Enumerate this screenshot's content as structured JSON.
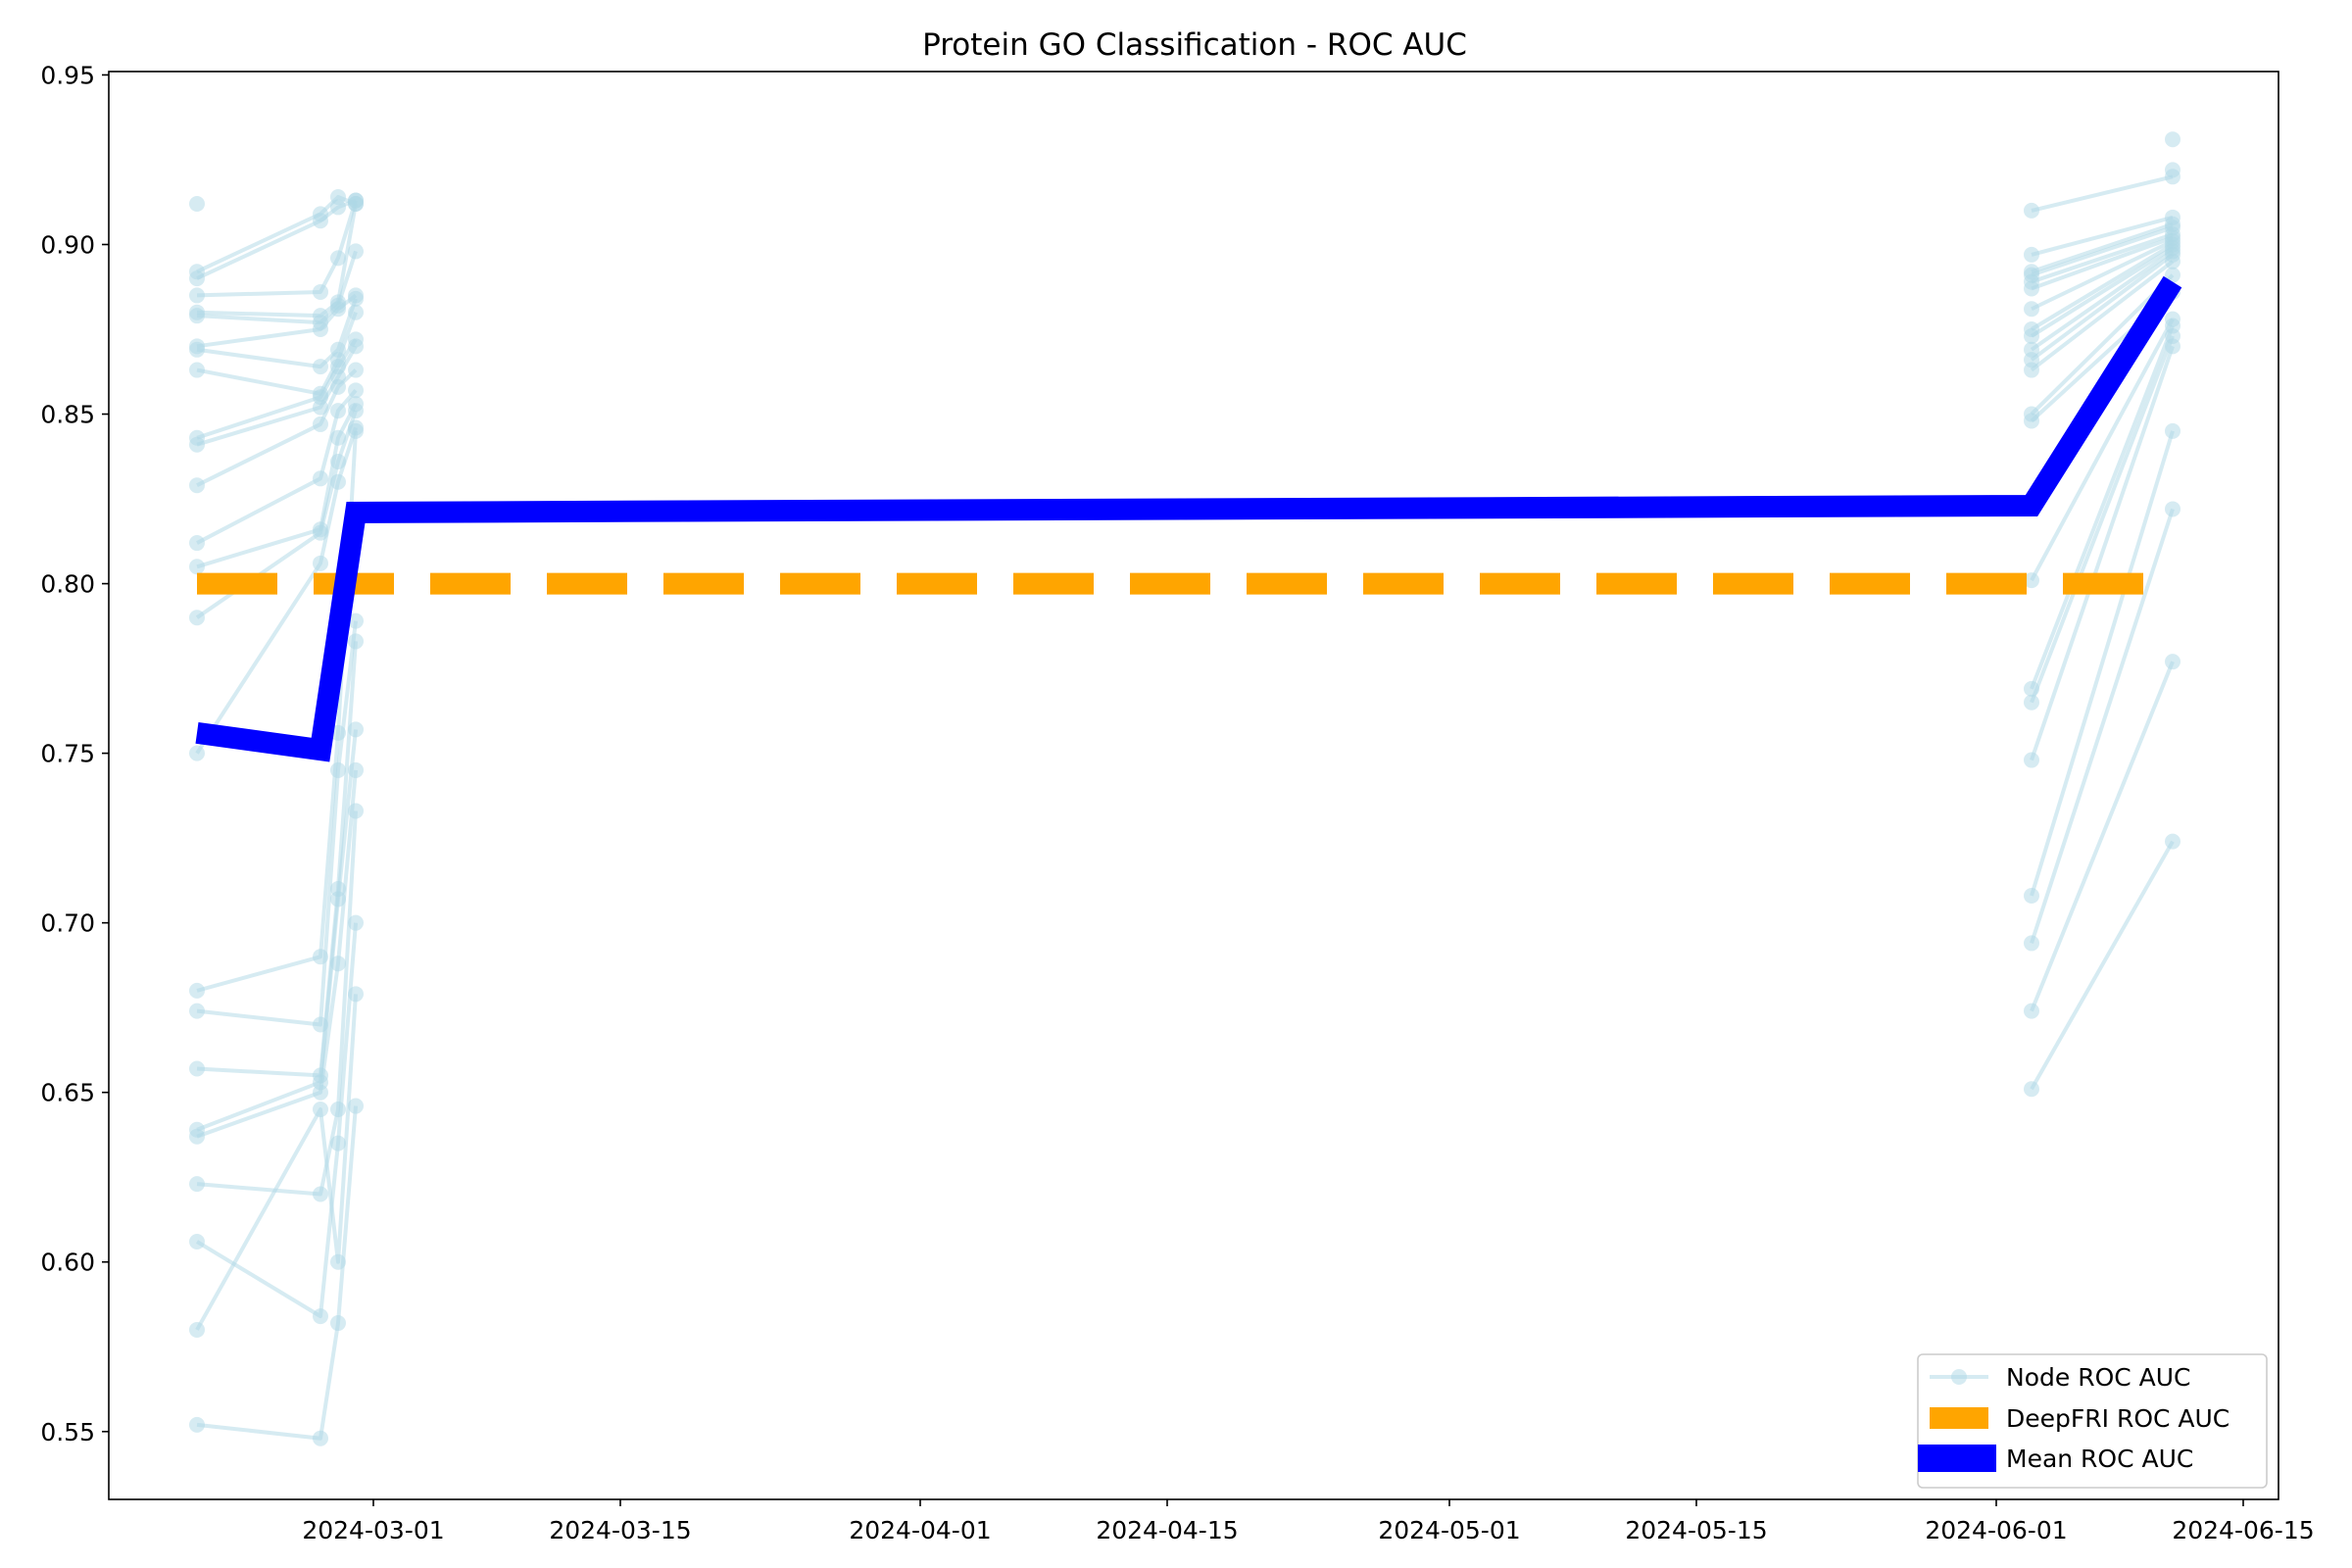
{
  "chart_data": {
    "type": "line",
    "title": "Protein GO Classification - ROC AUC",
    "xlabel": "",
    "ylabel": "",
    "x_axis": {
      "kind": "date",
      "range": [
        "2024-02-15",
        "2024-06-17"
      ]
    },
    "ylim": [
      0.53,
      0.951
    ],
    "x_ticks": [
      "2024-03-01",
      "2024-03-15",
      "2024-04-01",
      "2024-04-15",
      "2024-05-01",
      "2024-05-15",
      "2024-06-01",
      "2024-06-15"
    ],
    "y_ticks": [
      0.55,
      0.6,
      0.65,
      0.7,
      0.75,
      0.8,
      0.85,
      0.9,
      0.95
    ],
    "grid": false,
    "legend": {
      "position": "lower-right",
      "entries": [
        "Node ROC AUC",
        "DeepFRI ROC AUC",
        "Mean ROC AUC"
      ]
    },
    "colors": {
      "node": "#add8e6",
      "deepfri": "#ffa500",
      "mean": "#0000ff"
    },
    "node_series": [
      {
        "x": [
          "2024-02-20",
          "2024-02-27",
          "2024-02-28",
          "2024-02-29"
        ],
        "values": [
          0.552,
          0.548,
          0.582,
          0.646
        ]
      },
      {
        "x": [
          "2024-02-20",
          "2024-02-27",
          "2024-02-28",
          "2024-02-29"
        ],
        "values": [
          0.58,
          0.645,
          0.6,
          0.679
        ]
      },
      {
        "x": [
          "2024-02-20",
          "2024-02-27",
          "2024-02-28",
          "2024-02-29"
        ],
        "values": [
          0.606,
          0.584,
          0.635,
          0.7
        ]
      },
      {
        "x": [
          "2024-02-20",
          "2024-02-27",
          "2024-02-28",
          "2024-02-29"
        ],
        "values": [
          0.623,
          0.62,
          0.645,
          0.733
        ]
      },
      {
        "x": [
          "2024-02-20",
          "2024-02-27",
          "2024-02-28",
          "2024-02-29"
        ],
        "values": [
          0.637,
          0.65,
          0.688,
          0.745
        ]
      },
      {
        "x": [
          "2024-02-20",
          "2024-02-27",
          "2024-02-28",
          "2024-02-29"
        ],
        "values": [
          0.639,
          0.653,
          0.707,
          0.757
        ]
      },
      {
        "x": [
          "2024-02-20",
          "2024-02-27",
          "2024-02-28",
          "2024-02-29"
        ],
        "values": [
          0.657,
          0.655,
          0.71,
          0.783
        ]
      },
      {
        "x": [
          "2024-02-20",
          "2024-02-27",
          "2024-02-28",
          "2024-02-29"
        ],
        "values": [
          0.674,
          0.67,
          0.745,
          0.789
        ]
      },
      {
        "x": [
          "2024-02-20",
          "2024-02-27",
          "2024-02-28",
          "2024-02-29"
        ],
        "values": [
          0.68,
          0.69,
          0.756,
          0.845
        ]
      },
      {
        "x": [
          "2024-02-20",
          "2024-02-27",
          "2024-02-28",
          "2024-02-29"
        ],
        "values": [
          0.75,
          0.806,
          0.83,
          0.846
        ]
      },
      {
        "x": [
          "2024-02-20",
          "2024-02-27",
          "2024-02-28",
          "2024-02-29"
        ],
        "values": [
          0.79,
          0.815,
          0.836,
          0.851
        ]
      },
      {
        "x": [
          "2024-02-20",
          "2024-02-27",
          "2024-02-28",
          "2024-02-29"
        ],
        "values": [
          0.805,
          0.816,
          0.843,
          0.853
        ]
      },
      {
        "x": [
          "2024-02-20",
          "2024-02-27",
          "2024-02-28",
          "2024-02-29"
        ],
        "values": [
          0.812,
          0.831,
          0.851,
          0.857
        ]
      },
      {
        "x": [
          "2024-02-20",
          "2024-02-27",
          "2024-02-28",
          "2024-02-29"
        ],
        "values": [
          0.829,
          0.847,
          0.858,
          0.863
        ]
      },
      {
        "x": [
          "2024-02-20",
          "2024-02-27",
          "2024-02-28",
          "2024-02-29"
        ],
        "values": [
          0.841,
          0.852,
          0.861,
          0.87
        ]
      },
      {
        "x": [
          "2024-02-20",
          "2024-02-27",
          "2024-02-28",
          "2024-02-29"
        ],
        "values": [
          0.843,
          0.855,
          0.864,
          0.872
        ]
      },
      {
        "x": [
          "2024-02-20",
          "2024-02-27",
          "2024-02-28",
          "2024-02-29"
        ],
        "values": [
          0.863,
          0.856,
          0.866,
          0.88
        ]
      },
      {
        "x": [
          "2024-02-20",
          "2024-02-27",
          "2024-02-28",
          "2024-02-29"
        ],
        "values": [
          0.869,
          0.864,
          0.869,
          0.884
        ]
      },
      {
        "x": [
          "2024-02-20",
          "2024-02-27",
          "2024-02-28",
          "2024-02-29"
        ],
        "values": [
          0.87,
          0.875,
          0.881,
          0.885
        ]
      },
      {
        "x": [
          "2024-02-20",
          "2024-02-27",
          "2024-02-28",
          "2024-02-29"
        ],
        "values": [
          0.879,
          0.877,
          0.882,
          0.898
        ]
      },
      {
        "x": [
          "2024-02-20",
          "2024-02-27",
          "2024-02-28",
          "2024-02-29"
        ],
        "values": [
          0.88,
          0.879,
          0.883,
          0.912
        ]
      },
      {
        "x": [
          "2024-02-20",
          "2024-02-27",
          "2024-02-28",
          "2024-02-29"
        ],
        "values": [
          0.885,
          0.886,
          0.896,
          0.913
        ]
      },
      {
        "x": [
          "2024-02-20",
          "2024-02-27",
          "2024-02-28",
          "2024-02-29"
        ],
        "values": [
          0.89,
          0.907,
          0.911,
          0.913
        ]
      },
      {
        "x": [
          "2024-02-20",
          "2024-02-27",
          "2024-02-28",
          "2024-02-29"
        ],
        "values": [
          0.892,
          0.909,
          0.914,
          0.912
        ]
      },
      {
        "x": [
          "2024-02-20"
        ],
        "values": [
          0.912
        ]
      },
      {
        "x": [
          "2024-06-03",
          "2024-06-11"
        ],
        "values": [
          0.651,
          0.724
        ]
      },
      {
        "x": [
          "2024-06-03",
          "2024-06-11"
        ],
        "values": [
          0.674,
          0.777
        ]
      },
      {
        "x": [
          "2024-06-03",
          "2024-06-11"
        ],
        "values": [
          0.694,
          0.822
        ]
      },
      {
        "x": [
          "2024-06-03",
          "2024-06-11"
        ],
        "values": [
          0.708,
          0.845
        ]
      },
      {
        "x": [
          "2024-06-03",
          "2024-06-11"
        ],
        "values": [
          0.748,
          0.87
        ]
      },
      {
        "x": [
          "2024-06-03",
          "2024-06-11"
        ],
        "values": [
          0.765,
          0.873
        ]
      },
      {
        "x": [
          "2024-06-03",
          "2024-06-11"
        ],
        "values": [
          0.769,
          0.876
        ]
      },
      {
        "x": [
          "2024-06-03",
          "2024-06-11"
        ],
        "values": [
          0.801,
          0.878
        ]
      },
      {
        "x": [
          "2024-06-03",
          "2024-06-11"
        ],
        "values": [
          0.848,
          0.886
        ]
      },
      {
        "x": [
          "2024-06-03",
          "2024-06-11"
        ],
        "values": [
          0.85,
          0.891
        ]
      },
      {
        "x": [
          "2024-06-03",
          "2024-06-11"
        ],
        "values": [
          0.863,
          0.895
        ]
      },
      {
        "x": [
          "2024-06-03",
          "2024-06-11"
        ],
        "values": [
          0.866,
          0.897
        ]
      },
      {
        "x": [
          "2024-06-03",
          "2024-06-11"
        ],
        "values": [
          0.869,
          0.898
        ]
      },
      {
        "x": [
          "2024-06-03",
          "2024-06-11"
        ],
        "values": [
          0.873,
          0.899
        ]
      },
      {
        "x": [
          "2024-06-03",
          "2024-06-11"
        ],
        "values": [
          0.875,
          0.9
        ]
      },
      {
        "x": [
          "2024-06-03",
          "2024-06-11"
        ],
        "values": [
          0.881,
          0.901
        ]
      },
      {
        "x": [
          "2024-06-03",
          "2024-06-11"
        ],
        "values": [
          0.887,
          0.902
        ]
      },
      {
        "x": [
          "2024-06-03",
          "2024-06-11"
        ],
        "values": [
          0.889,
          0.903
        ]
      },
      {
        "x": [
          "2024-06-03",
          "2024-06-11"
        ],
        "values": [
          0.891,
          0.905
        ]
      },
      {
        "x": [
          "2024-06-03",
          "2024-06-11"
        ],
        "values": [
          0.892,
          0.906
        ]
      },
      {
        "x": [
          "2024-06-03",
          "2024-06-11"
        ],
        "values": [
          0.897,
          0.908
        ]
      },
      {
        "x": [
          "2024-06-03",
          "2024-06-11"
        ],
        "values": [
          0.91,
          0.92
        ]
      },
      {
        "x": [
          "2024-06-11"
        ],
        "values": [
          0.922
        ]
      },
      {
        "x": [
          "2024-06-11"
        ],
        "values": [
          0.931
        ]
      }
    ],
    "deepfri_series": {
      "x": [
        "2024-02-20",
        "2024-06-11"
      ],
      "values": [
        0.8,
        0.8
      ]
    },
    "mean_series": {
      "x": [
        "2024-02-20",
        "2024-02-27",
        "2024-02-29",
        "2024-06-03",
        "2024-06-11"
      ],
      "values": [
        0.756,
        0.751,
        0.821,
        0.823,
        0.889
      ]
    }
  }
}
